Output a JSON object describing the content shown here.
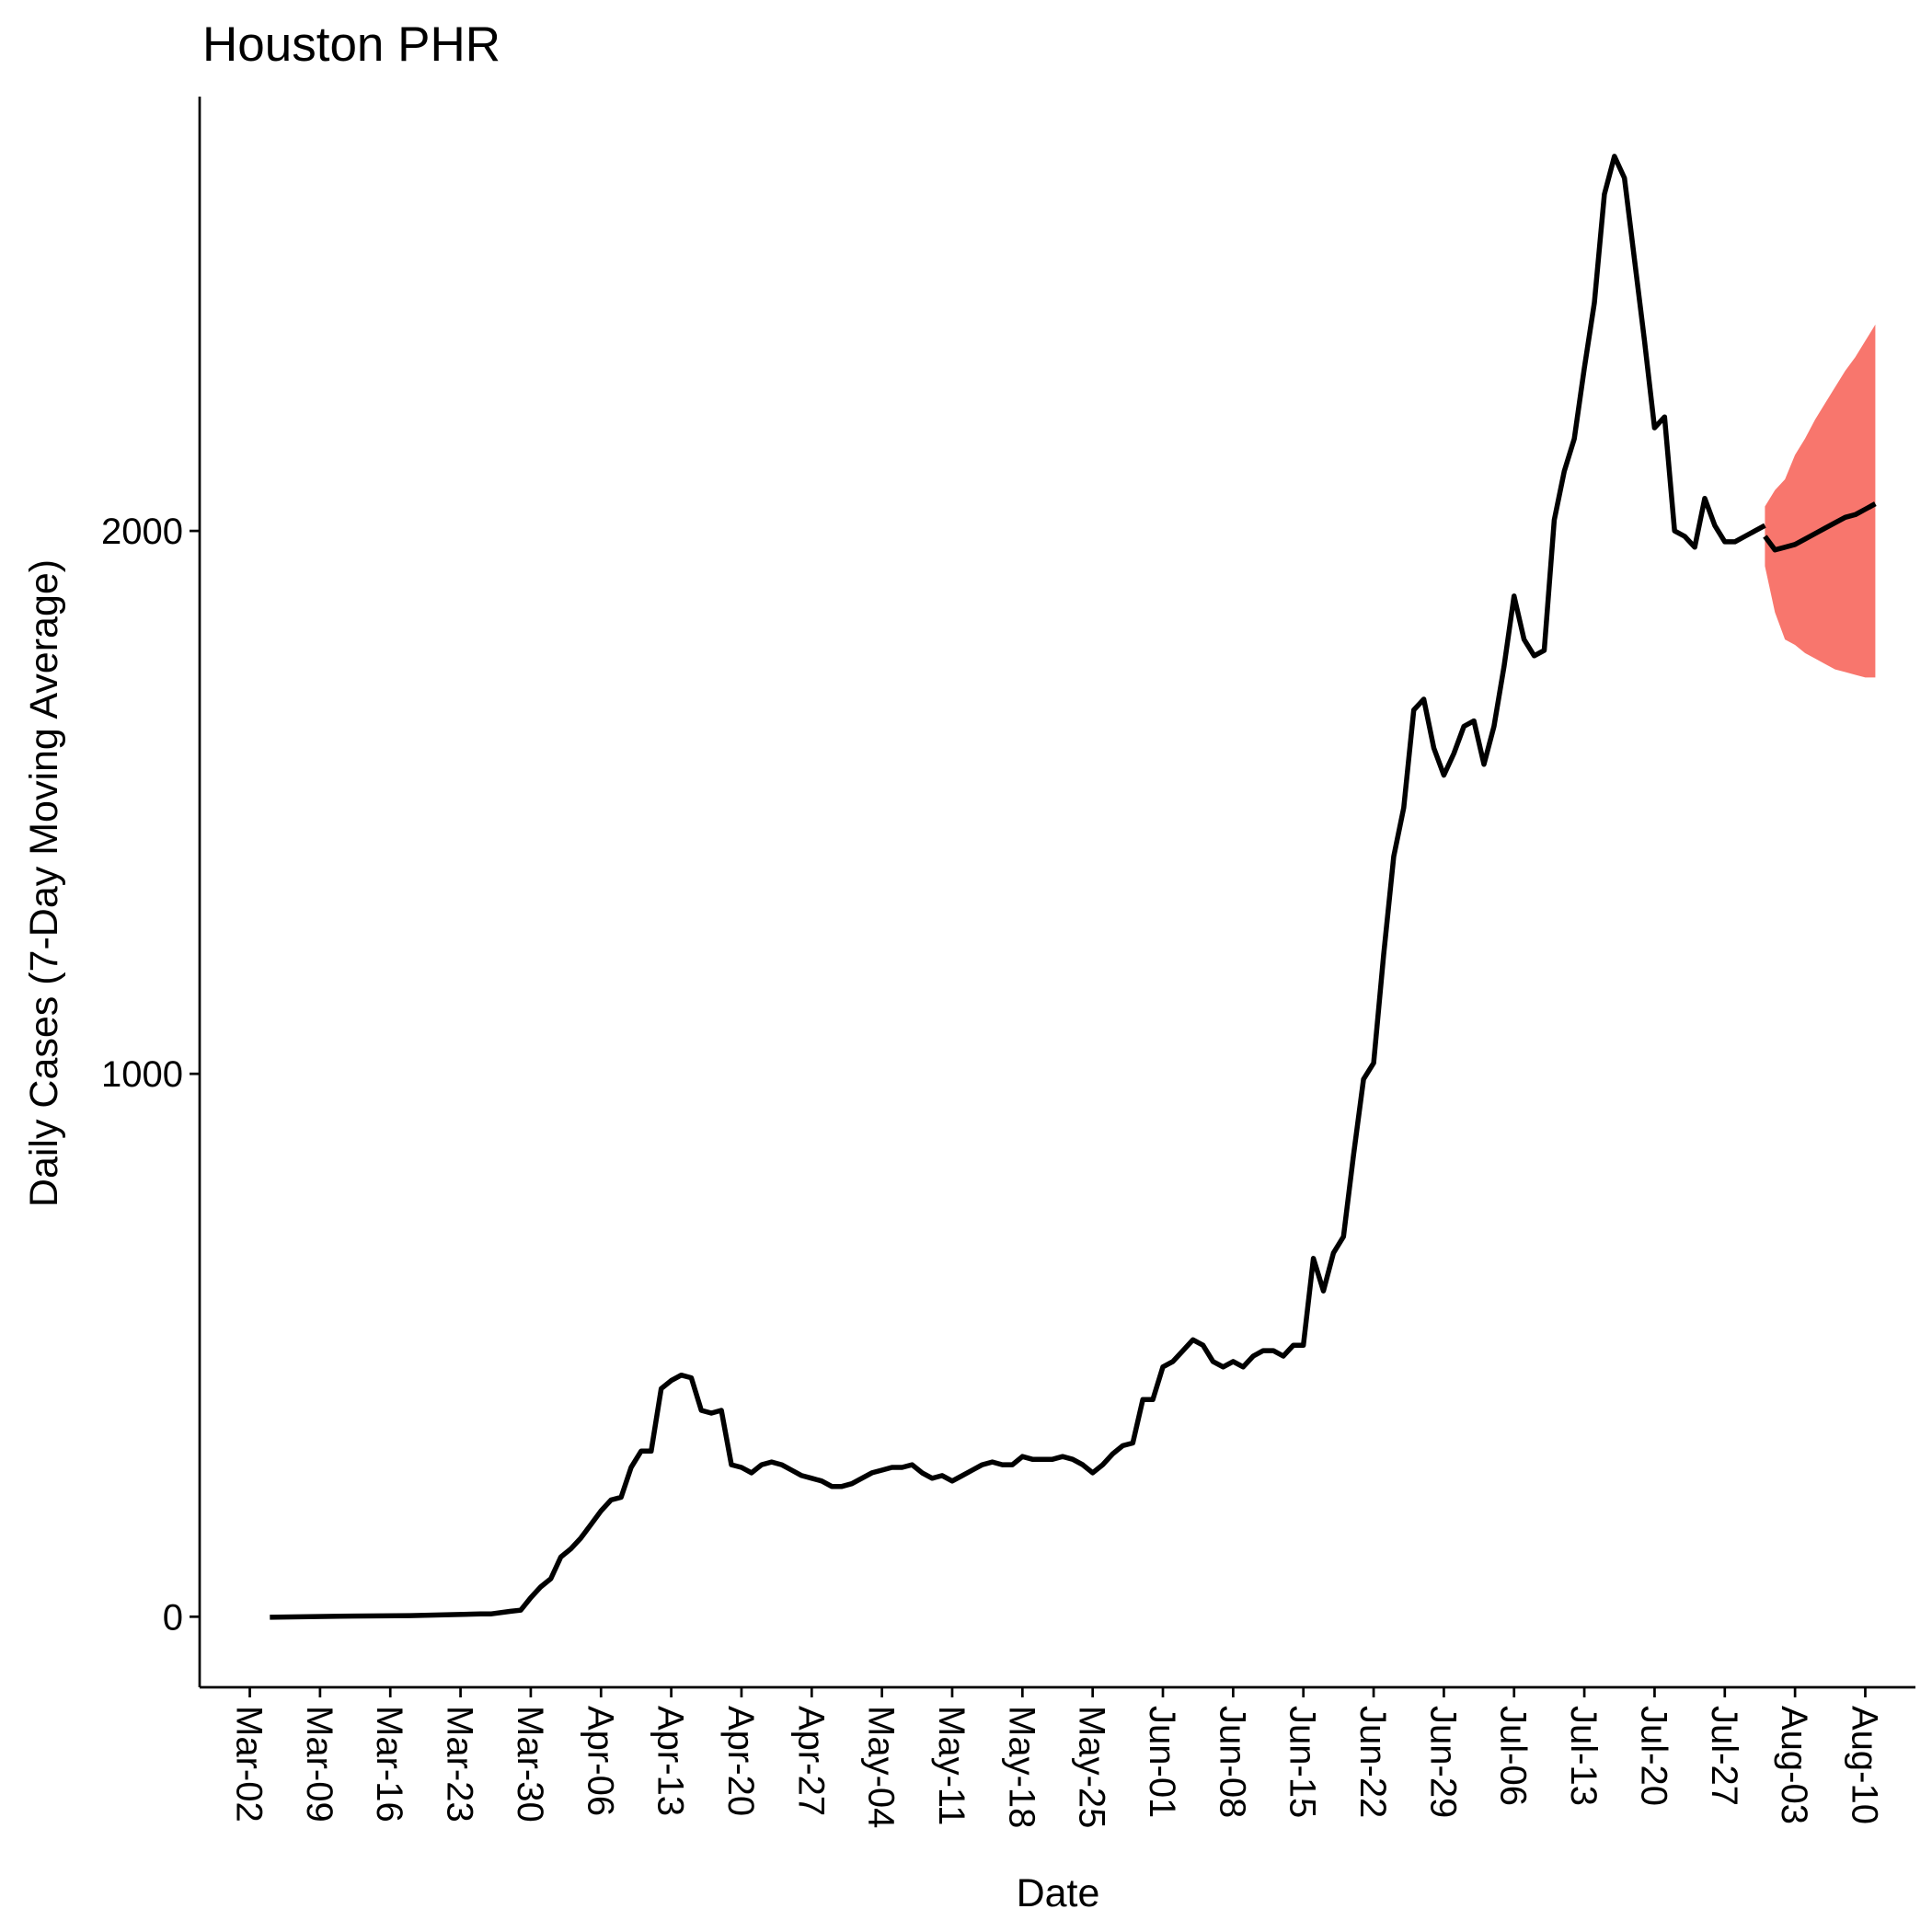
{
  "chart_data": {
    "type": "line",
    "title": "Houston PHR",
    "xlabel": "Date",
    "ylabel": "Daily Cases (7-Day Moving Average)",
    "grid": false,
    "legend": "none",
    "x_tick_labels": [
      "Mar-02",
      "Mar-09",
      "Mar-16",
      "Mar-23",
      "Mar-30",
      "Apr-06",
      "Apr-13",
      "Apr-20",
      "Apr-27",
      "May-04",
      "May-11",
      "May-18",
      "May-25",
      "Jun-01",
      "Jun-08",
      "Jun-15",
      "Jun-22",
      "Jun-29",
      "Jul-06",
      "Jul-13",
      "Jul-20",
      "Jul-27",
      "Aug-03",
      "Aug-10"
    ],
    "y_tick_labels": [
      "0",
      "1000",
      "2000"
    ],
    "y_ticks": [
      0,
      1000,
      2000
    ],
    "xlim": [
      "2020-02-26",
      "2020-08-15"
    ],
    "ylim": [
      -130,
      2800
    ],
    "colors": {
      "line": "#000000",
      "band": "#F8766D"
    },
    "series": [
      {
        "type": "line",
        "x": [
          "2020-03-04",
          "2020-03-11",
          "2020-03-18",
          "2020-03-25",
          "2020-03-26",
          "2020-03-28",
          "2020-03-29",
          "2020-03-30",
          "2020-03-31",
          "2020-04-01",
          "2020-04-02",
          "2020-04-03",
          "2020-04-04",
          "2020-04-05",
          "2020-04-06",
          "2020-04-07",
          "2020-04-08",
          "2020-04-09",
          "2020-04-10",
          "2020-04-11",
          "2020-04-12",
          "2020-04-13",
          "2020-04-14",
          "2020-04-15",
          "2020-04-16",
          "2020-04-17",
          "2020-04-18",
          "2020-04-19",
          "2020-04-20",
          "2020-04-21",
          "2020-04-22",
          "2020-04-23",
          "2020-04-24",
          "2020-04-25",
          "2020-04-26",
          "2020-04-27",
          "2020-04-28",
          "2020-04-29",
          "2020-04-30",
          "2020-05-01",
          "2020-05-02",
          "2020-05-03",
          "2020-05-04",
          "2020-05-05",
          "2020-05-06",
          "2020-05-07",
          "2020-05-08",
          "2020-05-09",
          "2020-05-10",
          "2020-05-11",
          "2020-05-12",
          "2020-05-13",
          "2020-05-14",
          "2020-05-15",
          "2020-05-16",
          "2020-05-17",
          "2020-05-18",
          "2020-05-19",
          "2020-05-20",
          "2020-05-21",
          "2020-05-22",
          "2020-05-23",
          "2020-05-24",
          "2020-05-25",
          "2020-05-26",
          "2020-05-27",
          "2020-05-28",
          "2020-05-29",
          "2020-05-30",
          "2020-05-31",
          "2020-06-01",
          "2020-06-02",
          "2020-06-03",
          "2020-06-04",
          "2020-06-05",
          "2020-06-06",
          "2020-06-07",
          "2020-06-08",
          "2020-06-09",
          "2020-06-10",
          "2020-06-11",
          "2020-06-12",
          "2020-06-13",
          "2020-06-14",
          "2020-06-15",
          "2020-06-16",
          "2020-06-17",
          "2020-06-18",
          "2020-06-19",
          "2020-06-20",
          "2020-06-21",
          "2020-06-22",
          "2020-06-23",
          "2020-06-24",
          "2020-06-25",
          "2020-06-26",
          "2020-06-27",
          "2020-06-28",
          "2020-06-29",
          "2020-06-30",
          "2020-07-01",
          "2020-07-02",
          "2020-07-03",
          "2020-07-04",
          "2020-07-05",
          "2020-07-06",
          "2020-07-07",
          "2020-07-08",
          "2020-07-09",
          "2020-07-10",
          "2020-07-11",
          "2020-07-12",
          "2020-07-13",
          "2020-07-14",
          "2020-07-15",
          "2020-07-16",
          "2020-07-17",
          "2020-07-18",
          "2020-07-19",
          "2020-07-20",
          "2020-07-21",
          "2020-07-22",
          "2020-07-23",
          "2020-07-24",
          "2020-07-25",
          "2020-07-26",
          "2020-07-27",
          "2020-07-28",
          "2020-07-29",
          "2020-07-30",
          "2020-07-31"
        ],
        "values": [
          -1,
          1,
          2,
          5,
          5,
          10,
          12,
          35,
          55,
          70,
          110,
          125,
          145,
          170,
          195,
          215,
          220,
          275,
          305,
          305,
          420,
          435,
          445,
          440,
          380,
          375,
          380,
          280,
          275,
          265,
          280,
          285,
          280,
          270,
          260,
          255,
          250,
          240,
          240,
          245,
          255,
          265,
          270,
          275,
          275,
          280,
          265,
          255,
          260,
          250,
          260,
          270,
          280,
          285,
          280,
          280,
          295,
          290,
          290,
          290,
          295,
          290,
          280,
          265,
          280,
          300,
          315,
          320,
          400,
          400,
          460,
          470,
          490,
          510,
          500,
          470,
          460,
          470,
          460,
          480,
          490,
          490,
          480,
          500,
          500,
          660,
          600,
          670,
          700,
          850,
          990,
          1020,
          1220,
          1400,
          1490,
          1670,
          1690,
          1600,
          1550,
          1590,
          1640,
          1650,
          1570,
          1640,
          1750,
          1880,
          1800,
          1770,
          1780,
          2020,
          2110,
          2170,
          2300,
          2420,
          2620,
          2690,
          2650,
          2500,
          2350,
          2190,
          2210,
          2000,
          1990,
          1970,
          2060,
          2010,
          1980,
          1980,
          1990,
          2000,
          2010
        ]
      },
      {
        "type": "forecast",
        "x": [
          "2020-07-31",
          "2020-08-01",
          "2020-08-02",
          "2020-08-03",
          "2020-08-04",
          "2020-08-05",
          "2020-08-06",
          "2020-08-07",
          "2020-08-08",
          "2020-08-09",
          "2020-08-10",
          "2020-08-11"
        ],
        "values": [
          1990,
          1965,
          1970,
          1975,
          1985,
          1995,
          2005,
          2015,
          2025,
          2030,
          2040,
          2050
        ],
        "lower": [
          1935,
          1850,
          1800,
          1790,
          1775,
          1765,
          1755,
          1745,
          1740,
          1735,
          1730,
          1730
        ],
        "upper": [
          2045,
          2075,
          2095,
          2140,
          2170,
          2205,
          2235,
          2265,
          2295,
          2320,
          2350,
          2380
        ]
      }
    ]
  }
}
